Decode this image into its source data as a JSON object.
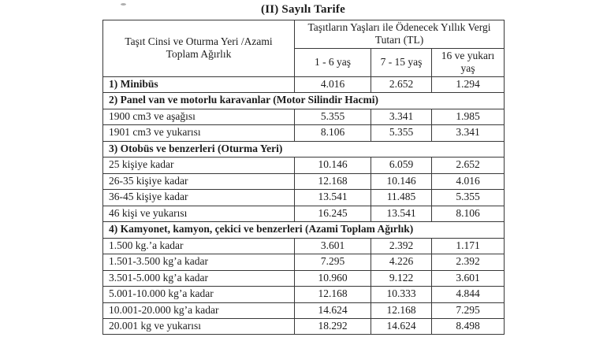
{
  "title": "(II) Sayılı Tarife",
  "table": {
    "header": {
      "vehicle_col": "Taşıt Cinsi ve Oturma Yeri /Azami Toplam Ağırlık",
      "tax_group": "Taşıtların Yaşları ile Ödenecek Yıllık Vergi Tutarı (TL)",
      "age_columns": [
        "1 - 6 yaş",
        "7 - 15 yaş",
        "16 ve yukarı yaş"
      ]
    },
    "rows": [
      {
        "type": "data",
        "bold": true,
        "label": "1) Minibüs",
        "values": [
          "4.016",
          "2.652",
          "1.294"
        ]
      },
      {
        "type": "section",
        "label": "2) Panel van ve motorlu karavanlar (Motor Silindir Hacmi)"
      },
      {
        "type": "data",
        "bold": false,
        "label": "1900 cm3 ve aşağısı",
        "values": [
          "5.355",
          "3.341",
          "1.985"
        ]
      },
      {
        "type": "data",
        "bold": false,
        "label": "1901 cm3 ve yukarısı",
        "values": [
          "8.106",
          "5.355",
          "3.341"
        ]
      },
      {
        "type": "section",
        "label": "3) Otobüs ve benzerleri (Oturma Yeri)"
      },
      {
        "type": "data",
        "bold": false,
        "label": "25 kişiye kadar",
        "values": [
          "10.146",
          "6.059",
          "2.652"
        ]
      },
      {
        "type": "data",
        "bold": false,
        "label": "26-35 kişiye kadar",
        "values": [
          "12.168",
          "10.146",
          "4.016"
        ]
      },
      {
        "type": "data",
        "bold": false,
        "label": "36-45 kişiye kadar",
        "values": [
          "13.541",
          "11.485",
          "5.355"
        ]
      },
      {
        "type": "data",
        "bold": false,
        "label": "46 kişi ve yukarısı",
        "values": [
          "16.245",
          "13.541",
          "8.106"
        ]
      },
      {
        "type": "section",
        "label": "4) Kamyonet, kamyon, çekici ve benzerleri (Azami Toplam Ağırlık)"
      },
      {
        "type": "data",
        "bold": false,
        "label": "1.500 kg.’a kadar",
        "values": [
          "3.601",
          "2.392",
          "1.171"
        ]
      },
      {
        "type": "data",
        "bold": false,
        "label": "1.501-3.500 kg’a kadar",
        "values": [
          "7.295",
          "4.226",
          "2.392"
        ]
      },
      {
        "type": "data",
        "bold": false,
        "label": "3.501-5.000 kg’a kadar",
        "values": [
          "10.960",
          "9.122",
          "3.601"
        ]
      },
      {
        "type": "data",
        "bold": false,
        "label": "5.001-10.000 kg’a kadar",
        "values": [
          "12.168",
          "10.333",
          "4.844"
        ]
      },
      {
        "type": "data",
        "bold": false,
        "label": "10.001-20.000 kg’a kadar",
        "values": [
          "14.624",
          "12.168",
          "7.295"
        ]
      },
      {
        "type": "data",
        "bold": false,
        "label": "20.001 kg ve yukarısı",
        "values": [
          "18.292",
          "14.624",
          "8.498"
        ]
      }
    ]
  }
}
